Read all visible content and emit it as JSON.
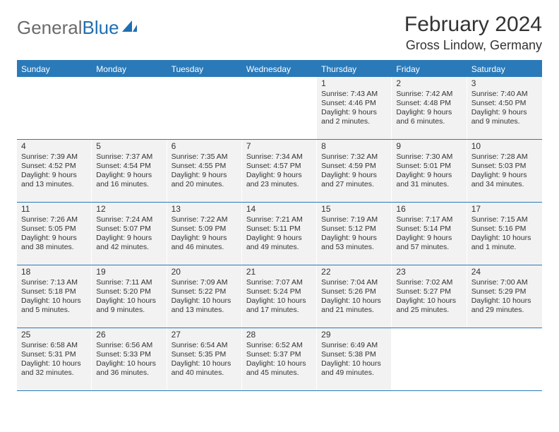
{
  "brand": {
    "name_left": "General",
    "name_right": "Blue"
  },
  "title": "February 2024",
  "location": "Gross Lindow, Germany",
  "dow": [
    "Sunday",
    "Monday",
    "Tuesday",
    "Wednesday",
    "Thursday",
    "Friday",
    "Saturday"
  ],
  "colors": {
    "header_bg": "#2a7ab9",
    "header_text": "#ffffff",
    "cell_bg": "#f2f2f2",
    "rule": "#2a7ab9",
    "logo_gray": "#6b6b6b",
    "logo_blue": "#1f6fb2"
  },
  "weeks": [
    [
      {
        "n": "",
        "sunrise": "",
        "sunset": "",
        "daylight": ""
      },
      {
        "n": "",
        "sunrise": "",
        "sunset": "",
        "daylight": ""
      },
      {
        "n": "",
        "sunrise": "",
        "sunset": "",
        "daylight": ""
      },
      {
        "n": "",
        "sunrise": "",
        "sunset": "",
        "daylight": ""
      },
      {
        "n": "1",
        "sunrise": "Sunrise: 7:43 AM",
        "sunset": "Sunset: 4:46 PM",
        "daylight": "Daylight: 9 hours and 2 minutes."
      },
      {
        "n": "2",
        "sunrise": "Sunrise: 7:42 AM",
        "sunset": "Sunset: 4:48 PM",
        "daylight": "Daylight: 9 hours and 6 minutes."
      },
      {
        "n": "3",
        "sunrise": "Sunrise: 7:40 AM",
        "sunset": "Sunset: 4:50 PM",
        "daylight": "Daylight: 9 hours and 9 minutes."
      }
    ],
    [
      {
        "n": "4",
        "sunrise": "Sunrise: 7:39 AM",
        "sunset": "Sunset: 4:52 PM",
        "daylight": "Daylight: 9 hours and 13 minutes."
      },
      {
        "n": "5",
        "sunrise": "Sunrise: 7:37 AM",
        "sunset": "Sunset: 4:54 PM",
        "daylight": "Daylight: 9 hours and 16 minutes."
      },
      {
        "n": "6",
        "sunrise": "Sunrise: 7:35 AM",
        "sunset": "Sunset: 4:55 PM",
        "daylight": "Daylight: 9 hours and 20 minutes."
      },
      {
        "n": "7",
        "sunrise": "Sunrise: 7:34 AM",
        "sunset": "Sunset: 4:57 PM",
        "daylight": "Daylight: 9 hours and 23 minutes."
      },
      {
        "n": "8",
        "sunrise": "Sunrise: 7:32 AM",
        "sunset": "Sunset: 4:59 PM",
        "daylight": "Daylight: 9 hours and 27 minutes."
      },
      {
        "n": "9",
        "sunrise": "Sunrise: 7:30 AM",
        "sunset": "Sunset: 5:01 PM",
        "daylight": "Daylight: 9 hours and 31 minutes."
      },
      {
        "n": "10",
        "sunrise": "Sunrise: 7:28 AM",
        "sunset": "Sunset: 5:03 PM",
        "daylight": "Daylight: 9 hours and 34 minutes."
      }
    ],
    [
      {
        "n": "11",
        "sunrise": "Sunrise: 7:26 AM",
        "sunset": "Sunset: 5:05 PM",
        "daylight": "Daylight: 9 hours and 38 minutes."
      },
      {
        "n": "12",
        "sunrise": "Sunrise: 7:24 AM",
        "sunset": "Sunset: 5:07 PM",
        "daylight": "Daylight: 9 hours and 42 minutes."
      },
      {
        "n": "13",
        "sunrise": "Sunrise: 7:22 AM",
        "sunset": "Sunset: 5:09 PM",
        "daylight": "Daylight: 9 hours and 46 minutes."
      },
      {
        "n": "14",
        "sunrise": "Sunrise: 7:21 AM",
        "sunset": "Sunset: 5:11 PM",
        "daylight": "Daylight: 9 hours and 49 minutes."
      },
      {
        "n": "15",
        "sunrise": "Sunrise: 7:19 AM",
        "sunset": "Sunset: 5:12 PM",
        "daylight": "Daylight: 9 hours and 53 minutes."
      },
      {
        "n": "16",
        "sunrise": "Sunrise: 7:17 AM",
        "sunset": "Sunset: 5:14 PM",
        "daylight": "Daylight: 9 hours and 57 minutes."
      },
      {
        "n": "17",
        "sunrise": "Sunrise: 7:15 AM",
        "sunset": "Sunset: 5:16 PM",
        "daylight": "Daylight: 10 hours and 1 minute."
      }
    ],
    [
      {
        "n": "18",
        "sunrise": "Sunrise: 7:13 AM",
        "sunset": "Sunset: 5:18 PM",
        "daylight": "Daylight: 10 hours and 5 minutes."
      },
      {
        "n": "19",
        "sunrise": "Sunrise: 7:11 AM",
        "sunset": "Sunset: 5:20 PM",
        "daylight": "Daylight: 10 hours and 9 minutes."
      },
      {
        "n": "20",
        "sunrise": "Sunrise: 7:09 AM",
        "sunset": "Sunset: 5:22 PM",
        "daylight": "Daylight: 10 hours and 13 minutes."
      },
      {
        "n": "21",
        "sunrise": "Sunrise: 7:07 AM",
        "sunset": "Sunset: 5:24 PM",
        "daylight": "Daylight: 10 hours and 17 minutes."
      },
      {
        "n": "22",
        "sunrise": "Sunrise: 7:04 AM",
        "sunset": "Sunset: 5:26 PM",
        "daylight": "Daylight: 10 hours and 21 minutes."
      },
      {
        "n": "23",
        "sunrise": "Sunrise: 7:02 AM",
        "sunset": "Sunset: 5:27 PM",
        "daylight": "Daylight: 10 hours and 25 minutes."
      },
      {
        "n": "24",
        "sunrise": "Sunrise: 7:00 AM",
        "sunset": "Sunset: 5:29 PM",
        "daylight": "Daylight: 10 hours and 29 minutes."
      }
    ],
    [
      {
        "n": "25",
        "sunrise": "Sunrise: 6:58 AM",
        "sunset": "Sunset: 5:31 PM",
        "daylight": "Daylight: 10 hours and 32 minutes."
      },
      {
        "n": "26",
        "sunrise": "Sunrise: 6:56 AM",
        "sunset": "Sunset: 5:33 PM",
        "daylight": "Daylight: 10 hours and 36 minutes."
      },
      {
        "n": "27",
        "sunrise": "Sunrise: 6:54 AM",
        "sunset": "Sunset: 5:35 PM",
        "daylight": "Daylight: 10 hours and 40 minutes."
      },
      {
        "n": "28",
        "sunrise": "Sunrise: 6:52 AM",
        "sunset": "Sunset: 5:37 PM",
        "daylight": "Daylight: 10 hours and 45 minutes."
      },
      {
        "n": "29",
        "sunrise": "Sunrise: 6:49 AM",
        "sunset": "Sunset: 5:38 PM",
        "daylight": "Daylight: 10 hours and 49 minutes."
      },
      {
        "n": "",
        "sunrise": "",
        "sunset": "",
        "daylight": ""
      },
      {
        "n": "",
        "sunrise": "",
        "sunset": "",
        "daylight": ""
      }
    ]
  ]
}
